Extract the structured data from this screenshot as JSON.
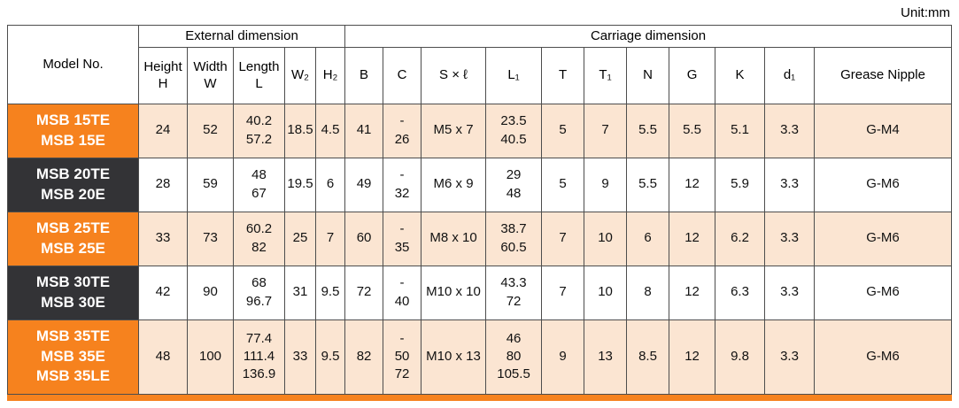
{
  "unit_label": "Unit:mm",
  "colors": {
    "orange": "#F6821E",
    "dark": "#333336",
    "row_tint": "#FBE5D2",
    "border": "#4D4D4D"
  },
  "table": {
    "header_groups": {
      "model": "Model No.",
      "external": "External dimension",
      "carriage": "Carriage dimension"
    },
    "column_keys": [
      "height-h",
      "width-w",
      "length-l",
      "w2",
      "h2",
      "b",
      "c",
      "s-x-l",
      "l1",
      "t",
      "t1",
      "n",
      "g",
      "k",
      "d1",
      "grease-nipple"
    ],
    "columns": [
      "Height\nH",
      "Width\nW",
      "Length\nL",
      "W₂",
      "H₂",
      "B",
      "C",
      "S × ℓ",
      "L₁",
      "T",
      "T₁",
      "N",
      "G",
      "K",
      "d₁",
      "Grease Nipple"
    ],
    "rows": [
      {
        "models": [
          "MSB 15TE",
          "MSB 15E"
        ],
        "model_style": "orange",
        "row_style": "tint",
        "cells": [
          "24",
          "52",
          "40.2\n57.2",
          "18.5",
          "4.5",
          "41",
          "-\n26",
          "M5 x 7",
          "23.5\n40.5",
          "5",
          "7",
          "5.5",
          "5.5",
          "5.1",
          "3.3",
          "G-M4"
        ]
      },
      {
        "models": [
          "MSB 20TE",
          "MSB 20E"
        ],
        "model_style": "dark",
        "row_style": "plain",
        "cells": [
          "28",
          "59",
          "48\n67",
          "19.5",
          "6",
          "49",
          "-\n32",
          "M6 x 9",
          "29\n48",
          "5",
          "9",
          "5.5",
          "12",
          "5.9",
          "3.3",
          "G-M6"
        ]
      },
      {
        "models": [
          "MSB 25TE",
          "MSB 25E"
        ],
        "model_style": "orange",
        "row_style": "tint",
        "cells": [
          "33",
          "73",
          "60.2\n82",
          "25",
          "7",
          "60",
          "-\n35",
          "M8 x 10",
          "38.7\n60.5",
          "7",
          "10",
          "6",
          "12",
          "6.2",
          "3.3",
          "G-M6"
        ]
      },
      {
        "models": [
          "MSB 30TE",
          "MSB 30E"
        ],
        "model_style": "dark",
        "row_style": "plain",
        "cells": [
          "42",
          "90",
          "68\n96.7",
          "31",
          "9.5",
          "72",
          "-\n40",
          "M10 x 10",
          "43.3\n72",
          "7",
          "10",
          "8",
          "12",
          "6.3",
          "3.3",
          "G-M6"
        ]
      },
      {
        "models": [
          "MSB 35TE",
          "MSB 35E",
          "MSB 35LE"
        ],
        "model_style": "orange",
        "row_style": "tint",
        "cells": [
          "48",
          "100",
          "77.4\n111.4\n136.9",
          "33",
          "9.5",
          "82",
          "-\n50\n72",
          "M10 x 13",
          "46\n80\n105.5",
          "9",
          "13",
          "8.5",
          "12",
          "9.8",
          "3.3",
          "G-M6"
        ]
      }
    ]
  }
}
